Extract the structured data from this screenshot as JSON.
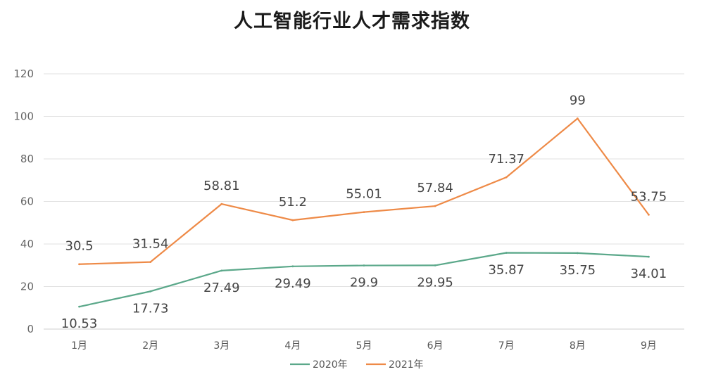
{
  "chart_data": {
    "type": "line",
    "title": "人工智能行业人才需求指数",
    "categories": [
      "1月",
      "2月",
      "3月",
      "4月",
      "5月",
      "6月",
      "7月",
      "8月",
      "9月"
    ],
    "series": [
      {
        "name": "2020年",
        "color": "#5BA88A",
        "values": [
          10.53,
          17.73,
          27.49,
          29.49,
          29.9,
          29.95,
          35.87,
          35.75,
          34.01
        ],
        "labels": [
          "10.53",
          "17.73",
          "27.49",
          "29.49",
          "29.9",
          "29.95",
          "35.87",
          "35.75",
          "34.01"
        ]
      },
      {
        "name": "2021年",
        "color": "#EE8A47",
        "values": [
          30.5,
          31.54,
          58.81,
          51.2,
          55.01,
          57.84,
          71.37,
          99,
          53.75
        ],
        "labels": [
          "30.5",
          "31.54",
          "58.81",
          "51.2",
          "55.01",
          "57.84",
          "71.37",
          "99",
          "53.75"
        ]
      }
    ],
    "ylim": [
      0,
      120
    ],
    "yticks": [
      "0",
      "20",
      "40",
      "60",
      "80",
      "100",
      "120"
    ],
    "grid": true,
    "legend": "bottom-center"
  }
}
